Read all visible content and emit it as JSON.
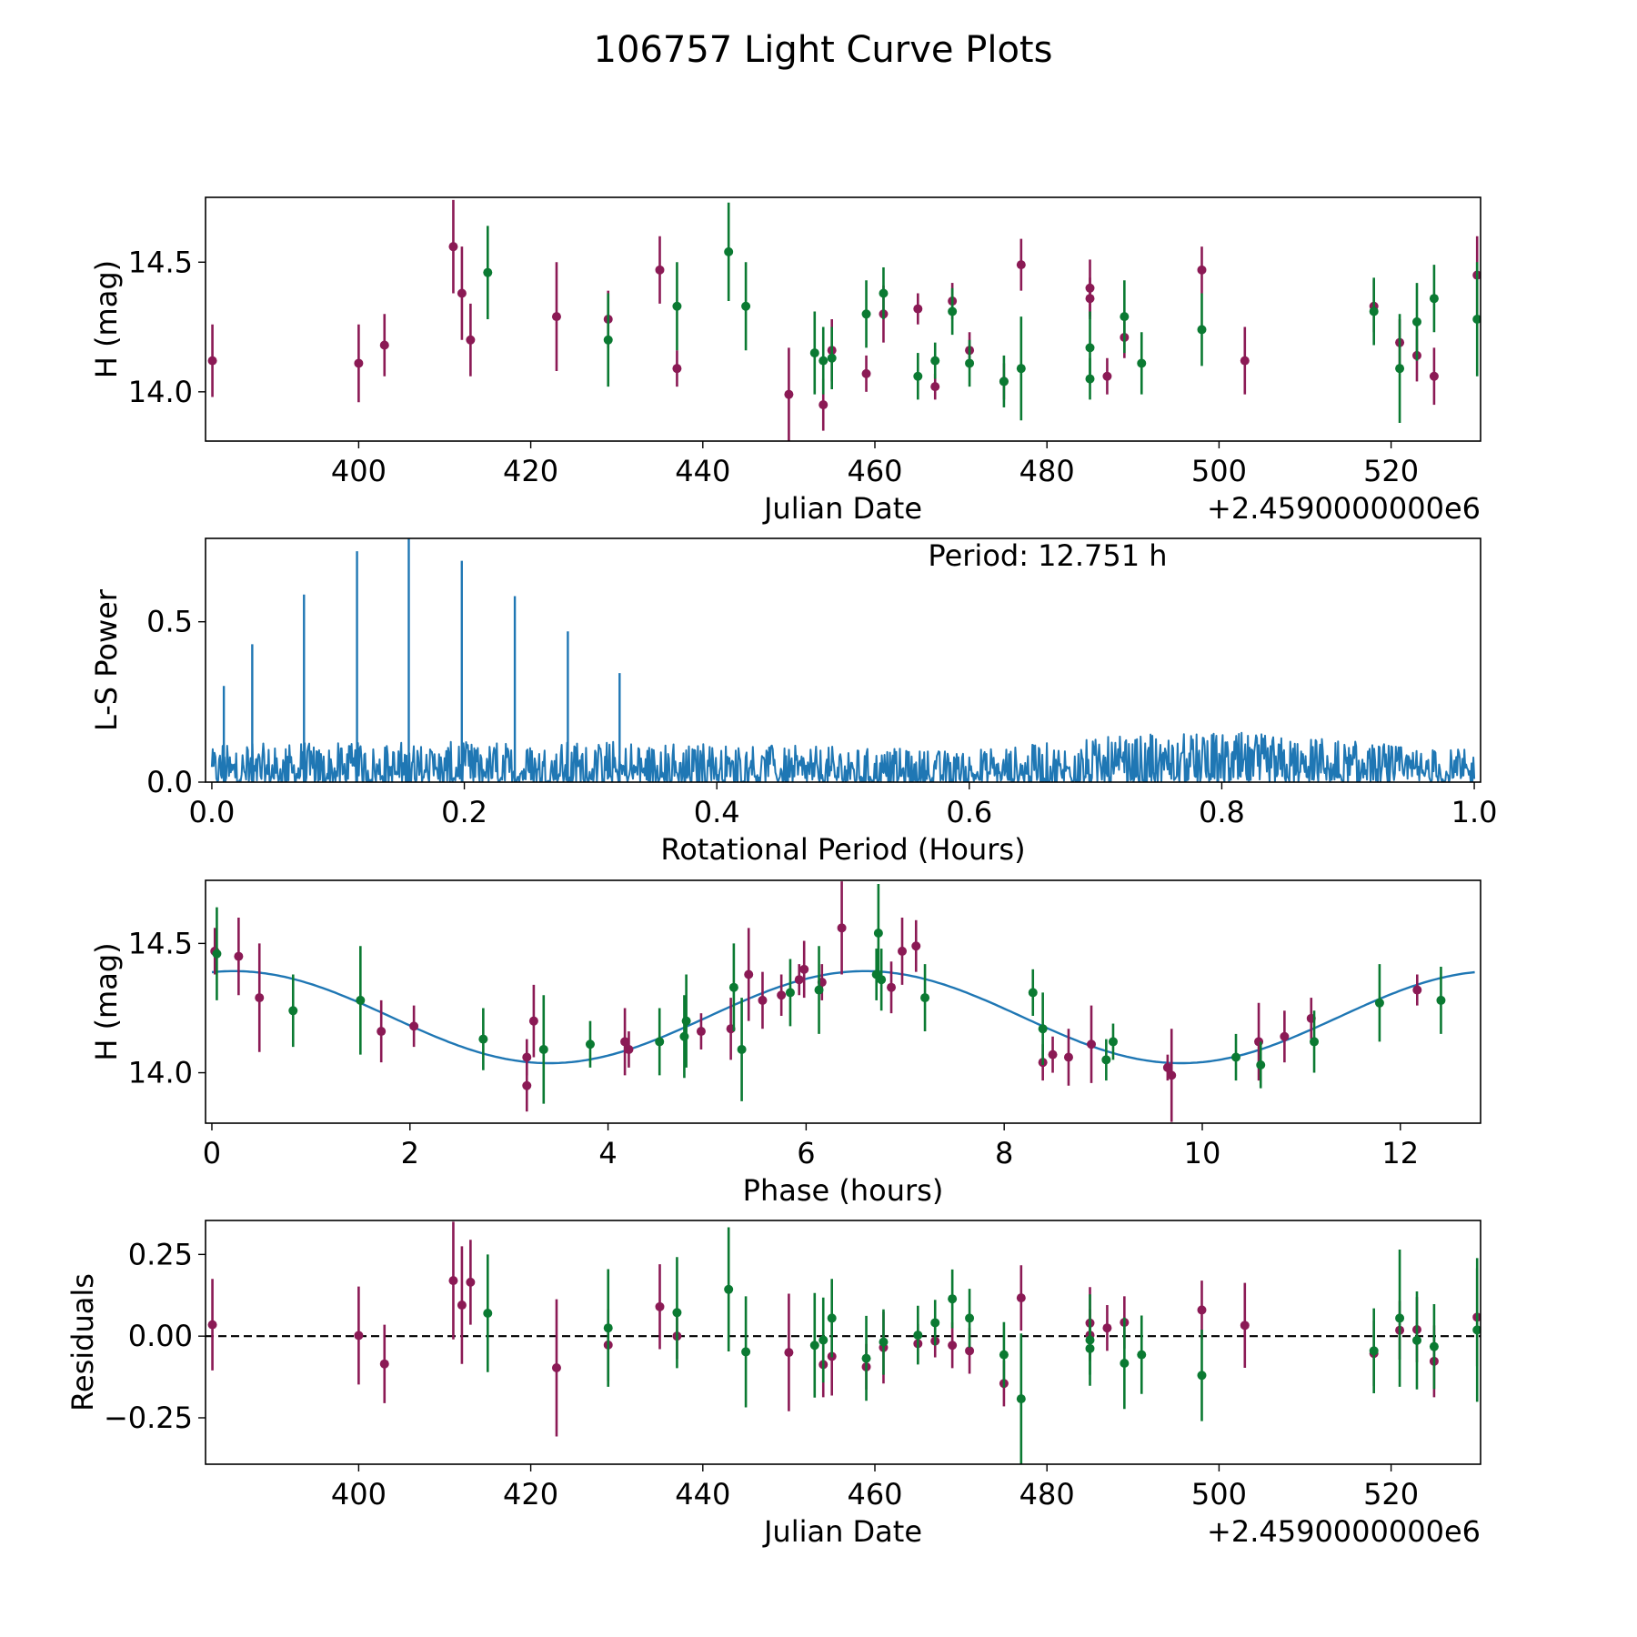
{
  "title": "106757 Light Curve Plots",
  "colors": {
    "series_a": "#8b1a55",
    "series_b": "#0b7a32",
    "periodogram": "#1f77b4",
    "fit": "#1f77b4",
    "zero_line": "#000000"
  },
  "chart_data": [
    {
      "type": "scatter",
      "name": "light-curve",
      "xlabel": "Julian Date",
      "ylabel": "H (mag)",
      "x_offset_label": "+2.4590000000e6",
      "xlim": [
        382.2,
        530.4
      ],
      "ylim": [
        13.81,
        14.75
      ],
      "xticks": [
        400,
        420,
        440,
        460,
        480,
        500,
        520
      ],
      "yticks": [
        14.0,
        14.5
      ],
      "ytick_labels": [
        "14.0",
        "14.5"
      ],
      "series": [
        {
          "name": "magenta",
          "color_key": "series_a",
          "points": [
            [
              383,
              14.12,
              0.14
            ],
            [
              400,
              14.11,
              0.15
            ],
            [
              403,
              14.18,
              0.12
            ],
            [
              411,
              14.56,
              0.18
            ],
            [
              412,
              14.38,
              0.18
            ],
            [
              413,
              14.2,
              0.14
            ],
            [
              423,
              14.29,
              0.21
            ],
            [
              429,
              14.28,
              0.11
            ],
            [
              435,
              14.47,
              0.13
            ],
            [
              437,
              14.09,
              0.07
            ],
            [
              450,
              13.99,
              0.18
            ],
            [
              454,
              13.95,
              0.1
            ],
            [
              455,
              14.16,
              0.12
            ],
            [
              459,
              14.07,
              0.07
            ],
            [
              461,
              14.3,
              0.11
            ],
            [
              465,
              14.32,
              0.06
            ],
            [
              467,
              14.02,
              0.05
            ],
            [
              469,
              14.35,
              0.07
            ],
            [
              471,
              14.16,
              0.07
            ],
            [
              475,
              14.04,
              0.07
            ],
            [
              477,
              14.49,
              0.1
            ],
            [
              485,
              14.4,
              0.11
            ],
            [
              485,
              14.36,
              0.08
            ],
            [
              487,
              14.06,
              0.07
            ],
            [
              489,
              14.21,
              0.08
            ],
            [
              498,
              14.47,
              0.09
            ],
            [
              503,
              14.12,
              0.13
            ],
            [
              518,
              14.33,
              0.1
            ],
            [
              521,
              14.19,
              0.09
            ],
            [
              523,
              14.14,
              0.1
            ],
            [
              525,
              14.06,
              0.11
            ],
            [
              530,
              14.45,
              0.15
            ]
          ]
        },
        {
          "name": "green",
          "color_key": "series_b",
          "points": [
            [
              415,
              14.46,
              0.18
            ],
            [
              429,
              14.2,
              0.18
            ],
            [
              437,
              14.33,
              0.17
            ],
            [
              443,
              14.54,
              0.19
            ],
            [
              445,
              14.33,
              0.17
            ],
            [
              453,
              14.15,
              0.16
            ],
            [
              454,
              14.12,
              0.13
            ],
            [
              455,
              14.13,
              0.12
            ],
            [
              459,
              14.3,
              0.13
            ],
            [
              461,
              14.38,
              0.1
            ],
            [
              465,
              14.06,
              0.09
            ],
            [
              467,
              14.12,
              0.07
            ],
            [
              469,
              14.31,
              0.09
            ],
            [
              471,
              14.11,
              0.09
            ],
            [
              475,
              14.04,
              0.1
            ],
            [
              477,
              14.09,
              0.2
            ],
            [
              485,
              14.17,
              0.14
            ],
            [
              485,
              14.05,
              0.08
            ],
            [
              489,
              14.29,
              0.14
            ],
            [
              491,
              14.11,
              0.12
            ],
            [
              498,
              14.24,
              0.14
            ],
            [
              518,
              14.31,
              0.13
            ],
            [
              521,
              14.09,
              0.21
            ],
            [
              523,
              14.27,
              0.15
            ],
            [
              525,
              14.36,
              0.13
            ],
            [
              530,
              14.28,
              0.22
            ]
          ]
        }
      ]
    },
    {
      "type": "line",
      "name": "periodogram",
      "xlabel": "Rotational Period (Hours)",
      "ylabel": "L-S Power",
      "annotation": "Period: 12.751 h",
      "xlim": [
        -0.005,
        1.005
      ],
      "ylim": [
        0.0,
        0.76
      ],
      "xticks": [
        0.0,
        0.2,
        0.4,
        0.6,
        0.8,
        1.0
      ],
      "xtick_labels": [
        "0.0",
        "0.2",
        "0.4",
        "0.6",
        "0.8",
        "1.0"
      ],
      "yticks": [
        0.0,
        0.5
      ],
      "ytick_labels": [
        "0.0",
        "0.5"
      ],
      "peaks": [
        [
          0.0095,
          0.3
        ],
        [
          0.032,
          0.43
        ],
        [
          0.073,
          0.585
        ],
        [
          0.115,
          0.72
        ],
        [
          0.156,
          0.76
        ],
        [
          0.198,
          0.69
        ],
        [
          0.24,
          0.58
        ],
        [
          0.282,
          0.47
        ],
        [
          0.323,
          0.34
        ]
      ],
      "noise_floor_profile": [
        [
          0.0,
          0.12
        ],
        [
          0.3,
          0.13
        ],
        [
          0.6,
          0.1
        ],
        [
          0.7,
          0.14
        ],
        [
          0.8,
          0.16
        ],
        [
          0.9,
          0.13
        ],
        [
          1.0,
          0.1
        ]
      ]
    },
    {
      "type": "scatter",
      "name": "phased-light-curve",
      "xlabel": "Phase (hours)",
      "ylabel": "H (mag)",
      "xlim": [
        -0.064,
        12.81
      ],
      "ylim": [
        13.805,
        14.744
      ],
      "xticks": [
        0,
        2,
        4,
        6,
        8,
        10,
        12
      ],
      "yticks": [
        14.0,
        14.5
      ],
      "ytick_labels": [
        "14.0",
        "14.5"
      ],
      "fit": {
        "mean": 14.215,
        "amplitude": 0.178,
        "peak_phase": 0.22,
        "cycle": 6.3755
      },
      "series": [
        {
          "name": "magenta",
          "color_key": "series_a",
          "points": [
            [
              0.03,
              14.47,
              0.09
            ],
            [
              0.27,
              14.45,
              0.15
            ],
            [
              0.48,
              14.29,
              0.21
            ],
            [
              1.71,
              14.16,
              0.12
            ],
            [
              2.04,
              14.18,
              0.08
            ],
            [
              3.18,
              14.06,
              0.07
            ],
            [
              3.18,
              13.95,
              0.1
            ],
            [
              3.25,
              14.2,
              0.14
            ],
            [
              4.17,
              14.12,
              0.13
            ],
            [
              4.21,
              14.09,
              0.07
            ],
            [
              4.94,
              14.16,
              0.07
            ],
            [
              5.24,
              14.17,
              0.12
            ],
            [
              5.42,
              14.38,
              0.18
            ],
            [
              5.56,
              14.28,
              0.11
            ],
            [
              5.75,
              14.3,
              0.08
            ],
            [
              5.93,
              14.36,
              0.06
            ],
            [
              5.98,
              14.4,
              0.11
            ],
            [
              6.16,
              14.35,
              0.07
            ],
            [
              6.36,
              14.56,
              0.18
            ],
            [
              6.86,
              14.33,
              0.1
            ],
            [
              6.97,
              14.47,
              0.13
            ],
            [
              7.11,
              14.49,
              0.1
            ],
            [
              8.39,
              14.04,
              0.07
            ],
            [
              8.49,
              14.07,
              0.07
            ],
            [
              8.65,
              14.06,
              0.11
            ],
            [
              8.88,
              14.11,
              0.15
            ],
            [
              9.65,
              14.02,
              0.05
            ],
            [
              9.69,
              13.99,
              0.18
            ],
            [
              10.57,
              14.12,
              0.15
            ],
            [
              10.83,
              14.14,
              0.1
            ],
            [
              11.1,
              14.21,
              0.08
            ],
            [
              12.17,
              14.32,
              0.06
            ]
          ]
        },
        {
          "name": "green",
          "color_key": "series_b",
          "points": [
            [
              0.05,
              14.46,
              0.18
            ],
            [
              0.82,
              14.24,
              0.14
            ],
            [
              1.5,
              14.28,
              0.21
            ],
            [
              2.74,
              14.13,
              0.12
            ],
            [
              3.35,
              14.09,
              0.21
            ],
            [
              3.82,
              14.11,
              0.09
            ],
            [
              4.52,
              14.12,
              0.13
            ],
            [
              4.77,
              14.14,
              0.16
            ],
            [
              4.79,
              14.2,
              0.18
            ],
            [
              5.27,
              14.33,
              0.17
            ],
            [
              5.35,
              14.09,
              0.2
            ],
            [
              5.84,
              14.31,
              0.13
            ],
            [
              6.13,
              14.32,
              0.17
            ],
            [
              6.71,
              14.38,
              0.1
            ],
            [
              6.73,
              14.54,
              0.19
            ],
            [
              6.76,
              14.36,
              0.12
            ],
            [
              7.2,
              14.29,
              0.13
            ],
            [
              8.29,
              14.31,
              0.09
            ],
            [
              8.39,
              14.17,
              0.14
            ],
            [
              9.03,
              14.05,
              0.08
            ],
            [
              9.1,
              14.12,
              0.07
            ],
            [
              10.34,
              14.06,
              0.09
            ],
            [
              10.59,
              14.03,
              0.09
            ],
            [
              11.13,
              14.12,
              0.12
            ],
            [
              11.79,
              14.27,
              0.15
            ],
            [
              12.41,
              14.28,
              0.13
            ]
          ]
        }
      ]
    },
    {
      "type": "scatter",
      "name": "residuals",
      "xlabel": "Julian Date",
      "ylabel": "Residuals",
      "x_offset_label": "+2.4590000000e6",
      "xlim": [
        382.2,
        530.4
      ],
      "ylim": [
        -0.392,
        0.354
      ],
      "xticks": [
        400,
        420,
        440,
        460,
        480,
        500,
        520
      ],
      "yticks": [
        -0.25,
        0.0,
        0.25
      ],
      "ytick_labels": [
        "−0.25",
        "0.00",
        "0.25"
      ],
      "zero_line": true,
      "series": [
        {
          "name": "magenta",
          "color_key": "series_a",
          "points": [
            [
              383,
              0.035,
              0.14
            ],
            [
              400,
              0.002,
              0.15
            ],
            [
              403,
              -0.085,
              0.12
            ],
            [
              411,
              0.17,
              0.18
            ],
            [
              412,
              0.095,
              0.18
            ],
            [
              413,
              0.165,
              0.13
            ],
            [
              423,
              -0.097,
              0.21
            ],
            [
              429,
              -0.027,
              0.11
            ],
            [
              435,
              0.09,
              0.13
            ],
            [
              437,
              0.0,
              0.07
            ],
            [
              450,
              -0.05,
              0.18
            ],
            [
              454,
              -0.087,
              0.1
            ],
            [
              455,
              -0.062,
              0.12
            ],
            [
              459,
              -0.094,
              0.07
            ],
            [
              461,
              -0.035,
              0.11
            ],
            [
              465,
              -0.023,
              0.06
            ],
            [
              467,
              -0.015,
              0.05
            ],
            [
              469,
              -0.028,
              0.07
            ],
            [
              471,
              -0.045,
              0.07
            ],
            [
              475,
              -0.145,
              0.07
            ],
            [
              477,
              0.117,
              0.1
            ],
            [
              485,
              0.04,
              0.11
            ],
            [
              485,
              0.003,
              0.08
            ],
            [
              487,
              0.025,
              0.07
            ],
            [
              489,
              0.042,
              0.08
            ],
            [
              498,
              0.08,
              0.09
            ],
            [
              503,
              0.033,
              0.13
            ],
            [
              518,
              -0.053,
              0.1
            ],
            [
              521,
              0.018,
              0.09
            ],
            [
              523,
              0.02,
              0.1
            ],
            [
              525,
              -0.077,
              0.11
            ],
            [
              530,
              0.058,
              0.15
            ]
          ]
        },
        {
          "name": "green",
          "color_key": "series_b",
          "points": [
            [
              415,
              0.07,
              0.18
            ],
            [
              429,
              0.025,
              0.18
            ],
            [
              437,
              0.072,
              0.17
            ],
            [
              443,
              0.143,
              0.19
            ],
            [
              445,
              -0.048,
              0.17
            ],
            [
              453,
              -0.028,
              0.16
            ],
            [
              454,
              -0.012,
              0.13
            ],
            [
              455,
              0.055,
              0.12
            ],
            [
              459,
              -0.068,
              0.13
            ],
            [
              461,
              -0.018,
              0.1
            ],
            [
              465,
              0.003,
              0.09
            ],
            [
              467,
              0.041,
              0.07
            ],
            [
              469,
              0.114,
              0.09
            ],
            [
              471,
              0.055,
              0.09
            ],
            [
              475,
              -0.057,
              0.1
            ],
            [
              477,
              -0.192,
              0.2
            ],
            [
              485,
              -0.012,
              0.14
            ],
            [
              485,
              -0.038,
              0.08
            ],
            [
              489,
              -0.083,
              0.14
            ],
            [
              491,
              -0.057,
              0.12
            ],
            [
              498,
              -0.12,
              0.14
            ],
            [
              518,
              -0.045,
              0.13
            ],
            [
              521,
              0.055,
              0.21
            ],
            [
              523,
              -0.013,
              0.15
            ],
            [
              525,
              -0.032,
              0.13
            ],
            [
              530,
              0.019,
              0.22
            ]
          ]
        }
      ]
    }
  ]
}
